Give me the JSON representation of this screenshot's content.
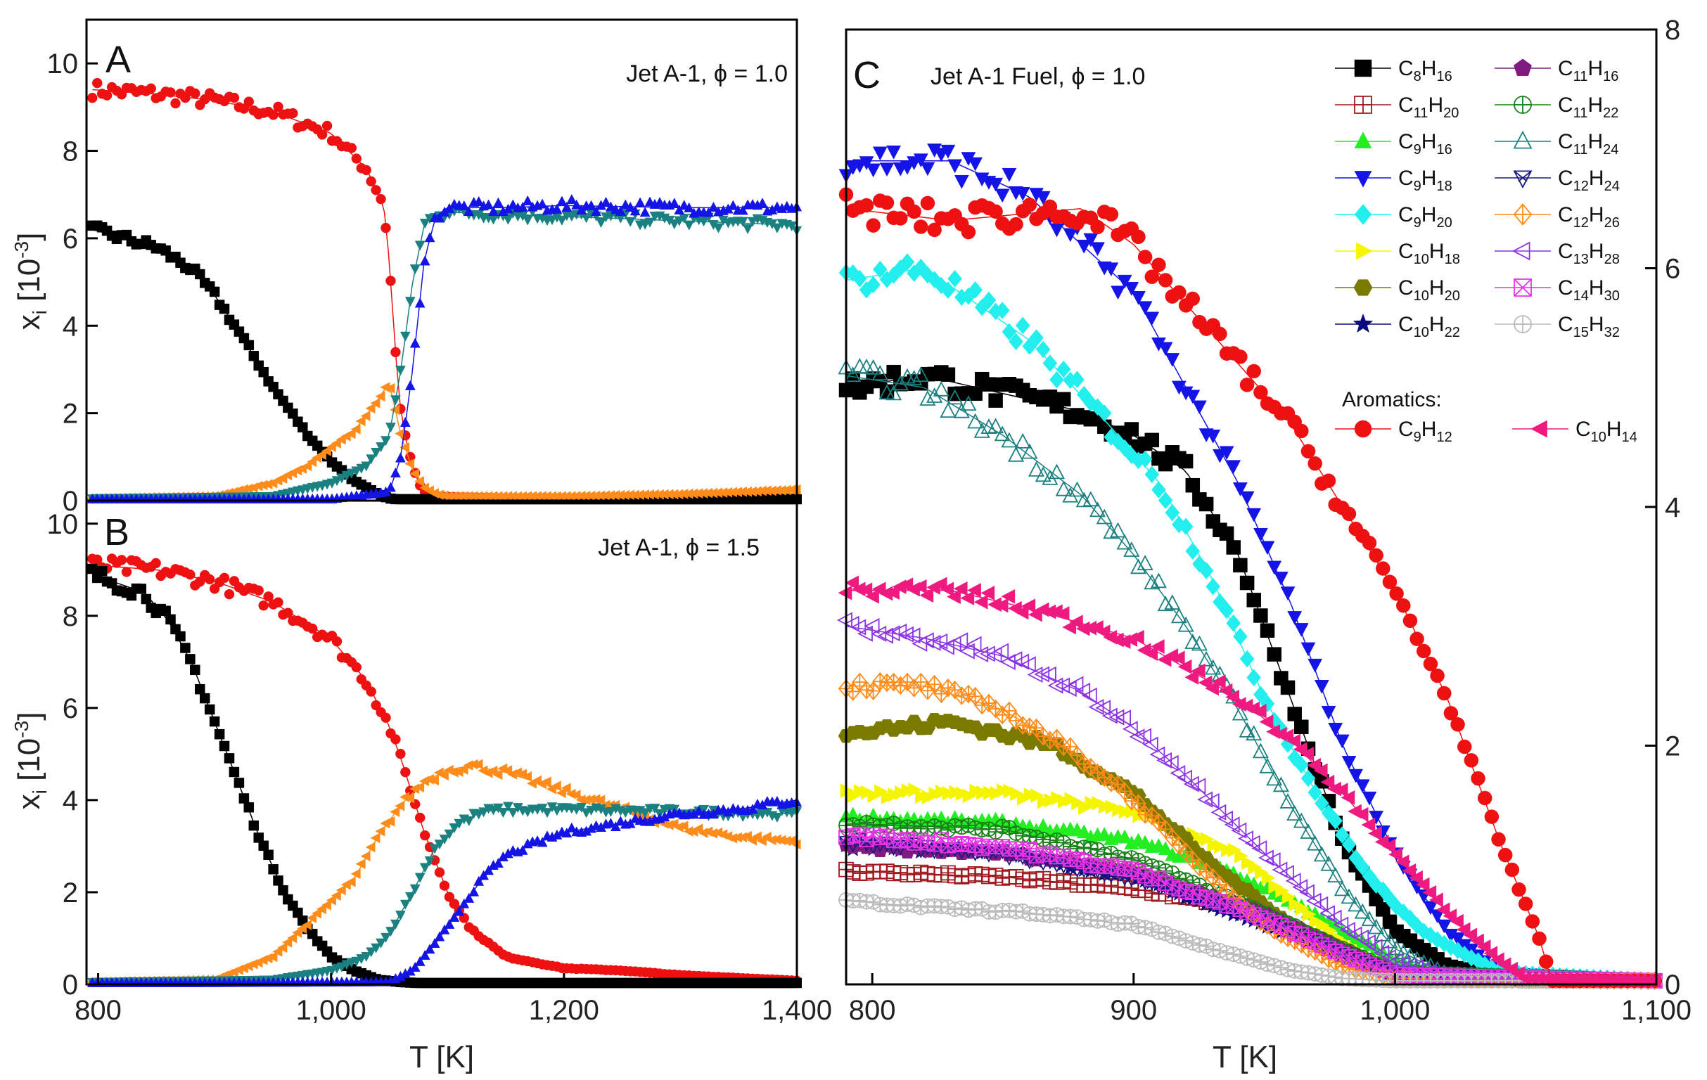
{
  "figure": {
    "ylabel_main": "x",
    "ylabel_sub": "i",
    "ylabel_units": " [10",
    "ylabel_exp": "-3",
    "ylabel_close": "]",
    "xlabel": "T [K]"
  },
  "colors": {
    "red": "#ee1111",
    "black": "#000000",
    "orange": "#ff8c1a",
    "teal": "#1a8080",
    "blue": "#1414e6"
  },
  "chart_data": [
    {
      "id": "A",
      "type": "line",
      "panel_label": "A",
      "title": "Jet A-1, ϕ = 1.0",
      "xlabel": "T [K]",
      "ylabel": "x_i [10^-3]",
      "xlim": [
        790,
        1400
      ],
      "ylim": [
        0,
        11
      ],
      "y_ticks": [
        0,
        2,
        4,
        6,
        8,
        10
      ],
      "y_tick_labels": [
        "0",
        "2",
        "4",
        "6",
        "8",
        "10"
      ],
      "series": [
        {
          "name": "red",
          "marker": "circle",
          "x": [
            795,
            850,
            900,
            950,
            1000,
            1030,
            1045,
            1050,
            1055,
            1060,
            1065,
            1070,
            1075,
            1080,
            1090,
            1100,
            1150,
            1200,
            1300,
            1400
          ],
          "y": [
            9.4,
            9.3,
            9.15,
            8.9,
            8.4,
            7.6,
            6.8,
            5.5,
            3.5,
            2.0,
            1.3,
            0.8,
            0.4,
            0.2,
            0.1,
            0.08,
            0.05,
            0.05,
            0.05,
            0.05
          ]
        },
        {
          "name": "black",
          "marker": "square",
          "x": [
            795,
            850,
            880,
            900,
            920,
            950,
            980,
            1000,
            1020,
            1040,
            1050,
            1060,
            1070,
            1400
          ],
          "y": [
            6.2,
            5.8,
            5.3,
            4.7,
            3.9,
            2.6,
            1.5,
            0.9,
            0.45,
            0.15,
            0.05,
            0.02,
            0.0,
            0.0
          ]
        },
        {
          "name": "orange",
          "marker": "triangle-left",
          "x": [
            795,
            900,
            950,
            980,
            1000,
            1020,
            1040,
            1050,
            1060,
            1070,
            1080,
            1090,
            1100,
            1200,
            1300,
            1400
          ],
          "y": [
            0.05,
            0.1,
            0.4,
            0.8,
            1.2,
            1.6,
            2.3,
            2.7,
            1.5,
            0.7,
            0.3,
            0.15,
            0.1,
            0.1,
            0.15,
            0.25
          ]
        },
        {
          "name": "teal",
          "marker": "triangle-down",
          "x": [
            795,
            950,
            1000,
            1030,
            1050,
            1060,
            1070,
            1080,
            1090,
            1100,
            1200,
            1300,
            1400
          ],
          "y": [
            0.05,
            0.1,
            0.4,
            0.8,
            1.5,
            3.0,
            5.0,
            6.3,
            6.6,
            6.6,
            6.5,
            6.4,
            6.3
          ]
        },
        {
          "name": "blue",
          "marker": "triangle-up",
          "x": [
            795,
            1000,
            1050,
            1060,
            1070,
            1080,
            1090,
            1100,
            1150,
            1200,
            1300,
            1400
          ],
          "y": [
            0.02,
            0.03,
            0.2,
            1.0,
            3.0,
            5.5,
            6.5,
            6.7,
            6.7,
            6.75,
            6.7,
            6.7
          ]
        }
      ]
    },
    {
      "id": "B",
      "type": "line",
      "panel_label": "B",
      "title": "Jet A-1, ϕ = 1.5",
      "xlabel": "T [K]",
      "ylabel": "x_i [10^-3]",
      "xlim": [
        790,
        1400
      ],
      "ylim": [
        0,
        10.5
      ],
      "y_ticks": [
        0,
        2,
        4,
        6,
        8,
        10
      ],
      "y_tick_labels": [
        "0",
        "2",
        "4",
        "6",
        "8",
        "10"
      ],
      "x_ticks": [
        800,
        1000,
        1200,
        1400
      ],
      "x_tick_labels": [
        "800",
        "1,000",
        "1,200",
        "1,400"
      ],
      "series": [
        {
          "name": "red",
          "marker": "circle",
          "x": [
            795,
            850,
            900,
            950,
            1000,
            1030,
            1050,
            1060,
            1070,
            1080,
            1100,
            1120,
            1150,
            1200,
            1250,
            1300,
            1400
          ],
          "y": [
            9.1,
            9.0,
            8.75,
            8.3,
            7.5,
            6.6,
            5.6,
            4.9,
            4.1,
            3.3,
            2.0,
            1.2,
            0.6,
            0.35,
            0.3,
            0.2,
            0.08
          ]
        },
        {
          "name": "black",
          "marker": "square",
          "x": [
            795,
            840,
            860,
            880,
            900,
            920,
            940,
            960,
            980,
            1000,
            1020,
            1040,
            1060,
            1080,
            1100,
            1400
          ],
          "y": [
            8.9,
            8.5,
            7.9,
            7.0,
            5.7,
            4.4,
            3.1,
            2.0,
            1.2,
            0.6,
            0.3,
            0.1,
            0.05,
            0.02,
            0.0,
            0.0
          ]
        },
        {
          "name": "orange",
          "marker": "triangle-left",
          "x": [
            795,
            900,
            950,
            1000,
            1020,
            1040,
            1060,
            1080,
            1100,
            1120,
            1150,
            1200,
            1250,
            1300,
            1350,
            1400
          ],
          "y": [
            0.05,
            0.1,
            0.6,
            1.8,
            2.3,
            3.2,
            3.9,
            4.4,
            4.65,
            4.75,
            4.6,
            4.2,
            3.8,
            3.4,
            3.2,
            3.1
          ]
        },
        {
          "name": "teal",
          "marker": "triangle-down",
          "x": [
            795,
            950,
            1000,
            1030,
            1050,
            1070,
            1090,
            1110,
            1130,
            1150,
            1200,
            1300,
            1400
          ],
          "y": [
            0.05,
            0.1,
            0.3,
            0.6,
            1.1,
            2.0,
            3.0,
            3.5,
            3.75,
            3.8,
            3.8,
            3.75,
            3.7
          ]
        },
        {
          "name": "blue",
          "marker": "triangle-up",
          "x": [
            795,
            1050,
            1070,
            1090,
            1110,
            1130,
            1150,
            1200,
            1250,
            1300,
            1350,
            1400
          ],
          "y": [
            0.02,
            0.05,
            0.3,
            0.9,
            1.6,
            2.3,
            2.8,
            3.3,
            3.5,
            3.7,
            3.8,
            4.0
          ]
        }
      ]
    },
    {
      "id": "C",
      "type": "line",
      "panel_label": "C",
      "title": "Jet A-1 Fuel, ϕ = 1.0",
      "xlabel": "T [K]",
      "ylabel": "",
      "xlim": [
        790,
        1100
      ],
      "ylim": [
        0,
        8
      ],
      "x_ticks": [
        800,
        900,
        1000,
        1100
      ],
      "x_tick_labels": [
        "800",
        "900",
        "1,000",
        "1,100"
      ],
      "y_ticks": [
        0,
        2,
        4,
        6,
        8
      ],
      "y_tick_labels": [
        "0",
        "2",
        "4",
        "6",
        "8"
      ],
      "legend_section": "Aromatics:",
      "series": [
        {
          "name": "C8H16",
          "base": "C",
          "n1": "8",
          "mid": "H",
          "n2": "16",
          "color": "#000000",
          "marker": "square",
          "fill": true,
          "x": [
            790,
            820,
            860,
            880,
            900,
            920,
            940,
            960,
            980,
            1000,
            1020,
            1050,
            1100
          ],
          "y": [
            5.0,
            5.1,
            4.9,
            4.8,
            4.6,
            4.3,
            3.6,
            2.4,
            1.2,
            0.45,
            0.15,
            0.03,
            0.03
          ]
        },
        {
          "name": "C11H20",
          "base": "C",
          "n1": "11",
          "mid": "H",
          "n2": "20",
          "color": "#a0191e",
          "marker": "square-plus",
          "fill": false,
          "x": [
            790,
            850,
            900,
            940,
            960,
            980,
            1000,
            1100
          ],
          "y": [
            0.95,
            0.9,
            0.8,
            0.65,
            0.45,
            0.25,
            0.08,
            0.03
          ]
        },
        {
          "name": "C9H16",
          "base": "C",
          "n1": "9",
          "mid": "H",
          "n2": "16",
          "color": "#22ee22",
          "marker": "triangle-up",
          "fill": true,
          "x": [
            790,
            850,
            900,
            930,
            960,
            980,
            1000,
            1020,
            1100
          ],
          "y": [
            1.4,
            1.35,
            1.2,
            1.0,
            0.7,
            0.45,
            0.2,
            0.06,
            0.03
          ]
        },
        {
          "name": "C9H18",
          "base": "C",
          "n1": "9",
          "mid": "H",
          "n2": "18",
          "color": "#1414e6",
          "marker": "triangle-down",
          "fill": true,
          "x": [
            790,
            830,
            860,
            900,
            920,
            940,
            960,
            980,
            1000,
            1020,
            1040,
            1100
          ],
          "y": [
            6.9,
            6.9,
            6.6,
            5.8,
            5.0,
            4.2,
            3.2,
            2.0,
            1.1,
            0.45,
            0.1,
            0.03
          ]
        },
        {
          "name": "C9H20",
          "base": "C",
          "n1": "9",
          "mid": "H",
          "n2": "20",
          "color": "#22eeee",
          "marker": "diamond",
          "fill": true,
          "x": [
            790,
            820,
            860,
            890,
            910,
            930,
            950,
            970,
            990,
            1010,
            1040,
            1100
          ],
          "y": [
            5.9,
            6.0,
            5.4,
            4.7,
            4.2,
            3.4,
            2.4,
            1.6,
            0.9,
            0.45,
            0.1,
            0.03
          ]
        },
        {
          "name": "C10H18",
          "base": "C",
          "n1": "10",
          "mid": "H",
          "n2": "18",
          "color": "#f5f500",
          "marker": "triangle-right",
          "fill": true,
          "x": [
            790,
            850,
            900,
            940,
            960,
            980,
            1000,
            1100
          ],
          "y": [
            1.6,
            1.6,
            1.45,
            1.1,
            0.7,
            0.35,
            0.1,
            0.03
          ]
        },
        {
          "name": "C10H20",
          "base": "C",
          "n1": "10",
          "mid": "H",
          "n2": "20",
          "color": "#7a7a00",
          "marker": "hexagon",
          "fill": true,
          "x": [
            790,
            830,
            870,
            900,
            930,
            960,
            980,
            1000,
            1100
          ],
          "y": [
            2.1,
            2.2,
            2.0,
            1.6,
            1.0,
            0.5,
            0.25,
            0.08,
            0.03
          ]
        },
        {
          "name": "C10H22",
          "base": "C",
          "n1": "10",
          "mid": "H",
          "n2": "22",
          "color": "#0a0a80",
          "marker": "star",
          "fill": true,
          "x": [
            790,
            850,
            900,
            950,
            980,
            1000,
            1100
          ],
          "y": [
            1.15,
            1.1,
            0.9,
            0.5,
            0.25,
            0.08,
            0.03
          ]
        },
        {
          "name": "C11H16",
          "base": "C",
          "n1": "11",
          "mid": "H",
          "n2": "16",
          "color": "#801a80",
          "marker": "pentagon",
          "fill": true,
          "x": [
            790,
            850,
            900,
            950,
            980,
            1000,
            1100
          ],
          "y": [
            1.15,
            1.1,
            0.95,
            0.6,
            0.3,
            0.1,
            0.03
          ]
        },
        {
          "name": "C11H22",
          "base": "C",
          "n1": "11",
          "mid": "H",
          "n2": "22",
          "color": "#1a801a",
          "marker": "circle-plus",
          "fill": false,
          "x": [
            790,
            850,
            900,
            950,
            980,
            1000,
            1100
          ],
          "y": [
            1.35,
            1.3,
            1.05,
            0.6,
            0.3,
            0.1,
            0.03
          ]
        },
        {
          "name": "C11H24",
          "base": "C",
          "n1": "11",
          "mid": "H",
          "n2": "24",
          "color": "#1a8080",
          "marker": "triangle-up",
          "fill": false,
          "x": [
            790,
            820,
            850,
            880,
            900,
            920,
            940,
            960,
            980,
            1000,
            1020,
            1100
          ],
          "y": [
            5.1,
            5.0,
            4.6,
            4.1,
            3.6,
            3.0,
            2.3,
            1.5,
            0.8,
            0.3,
            0.08,
            0.03
          ]
        },
        {
          "name": "C12H24",
          "base": "C",
          "n1": "12",
          "mid": "H",
          "n2": "24",
          "color": "#1a1a80",
          "marker": "x-triangle",
          "fill": false,
          "x": [
            790,
            850,
            900,
            950,
            980,
            1000,
            1100
          ],
          "y": [
            1.2,
            1.1,
            0.9,
            0.55,
            0.25,
            0.08,
            0.03
          ]
        },
        {
          "name": "C12H26",
          "base": "C",
          "n1": "12",
          "mid": "H",
          "n2": "26",
          "color": "#ff8c1a",
          "marker": "diamond-plus",
          "fill": false,
          "x": [
            790,
            820,
            850,
            880,
            900,
            920,
            950,
            980,
            1000,
            1100
          ],
          "y": [
            2.5,
            2.5,
            2.3,
            1.9,
            1.55,
            1.1,
            0.5,
            0.15,
            0.05,
            0.03
          ]
        },
        {
          "name": "C13H28",
          "base": "C",
          "n1": "13",
          "mid": "H",
          "n2": "28",
          "color": "#8c33e6",
          "marker": "triangle-left",
          "fill": false,
          "x": [
            790,
            820,
            850,
            880,
            900,
            920,
            950,
            980,
            1000,
            1020,
            1100
          ],
          "y": [
            3.0,
            2.9,
            2.75,
            2.45,
            2.15,
            1.75,
            1.1,
            0.5,
            0.2,
            0.06,
            0.03
          ]
        },
        {
          "name": "C14H30",
          "base": "C",
          "n1": "14",
          "mid": "H",
          "n2": "30",
          "color": "#e633e6",
          "marker": "x-square",
          "fill": false,
          "x": [
            790,
            850,
            900,
            950,
            980,
            1000,
            1100
          ],
          "y": [
            1.25,
            1.15,
            0.95,
            0.55,
            0.25,
            0.08,
            0.03
          ]
        },
        {
          "name": "C15H32",
          "base": "C",
          "n1": "15",
          "mid": "H",
          "n2": "32",
          "color": "#bbbbbb",
          "marker": "circle-plus",
          "fill": false,
          "x": [
            790,
            820,
            860,
            900,
            930,
            960,
            980,
            1000,
            1100
          ],
          "y": [
            0.7,
            0.65,
            0.6,
            0.5,
            0.3,
            0.12,
            0.05,
            0.03,
            0.03
          ]
        },
        {
          "name": "C9H12",
          "base": "C",
          "n1": "9",
          "mid": "H",
          "n2": "12",
          "color": "#ee1111",
          "marker": "circle",
          "fill": true,
          "aromatic": true,
          "x": [
            790,
            830,
            880,
            900,
            920,
            940,
            960,
            980,
            1000,
            1020,
            1040,
            1055,
            1060,
            1100
          ],
          "y": [
            6.5,
            6.4,
            6.5,
            6.2,
            5.7,
            5.2,
            4.7,
            4.0,
            3.3,
            2.4,
            1.2,
            0.4,
            0.03,
            0.03
          ]
        },
        {
          "name": "C10H14",
          "base": "C",
          "n1": "10",
          "mid": "H",
          "n2": "14",
          "color": "#ee1a80",
          "marker": "triangle-left",
          "fill": true,
          "aromatic": true,
          "x": [
            790,
            830,
            860,
            900,
            940,
            960,
            980,
            1000,
            1020,
            1040,
            1050,
            1100
          ],
          "y": [
            3.3,
            3.3,
            3.15,
            2.9,
            2.4,
            2.05,
            1.6,
            1.1,
            0.6,
            0.2,
            0.05,
            0.03
          ]
        }
      ]
    }
  ]
}
